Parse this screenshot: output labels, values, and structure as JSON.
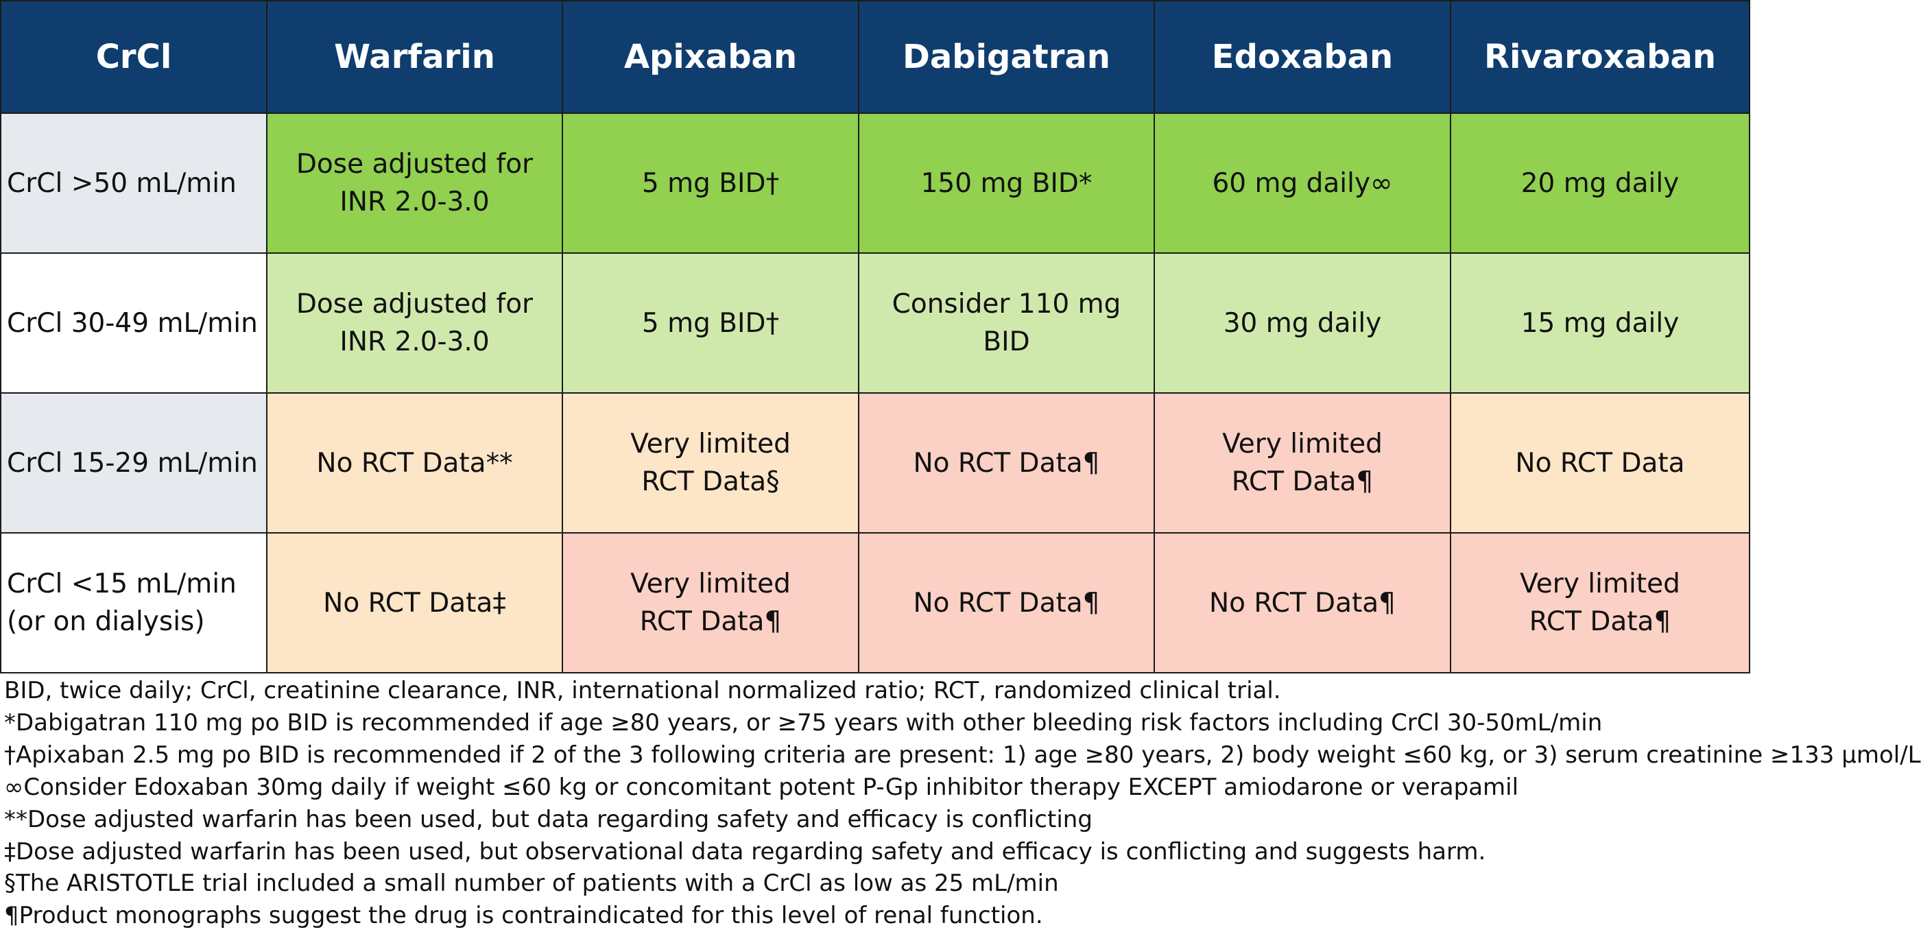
{
  "table": {
    "headers": [
      "CrCl",
      "Warfarin",
      "Apixaban",
      "Dabigatran",
      "Edoxaban",
      "Rivaroxaban"
    ],
    "rows": [
      {
        "crcl": "CrCl >50 mL/min",
        "cells": [
          "Dose adjusted for\nINR 2.0-3.0",
          "5 mg BID†",
          "150 mg BID*",
          "60 mg daily∞",
          "20 mg daily"
        ]
      },
      {
        "crcl": "CrCl 30-49 mL/min",
        "cells": [
          "Dose adjusted for\nINR 2.0-3.0",
          "5 mg BID†",
          "Consider 110 mg BID",
          "30 mg daily",
          "15 mg daily"
        ]
      },
      {
        "crcl": "CrCl 15-29 mL/min",
        "cells": [
          "No RCT Data**",
          "Very limited\nRCT Data§",
          "No RCT Data¶",
          "Very limited\nRCT Data¶",
          "No RCT Data"
        ]
      },
      {
        "crcl": "CrCl <15 mL/min\n(or on dialysis)",
        "cells": [
          "No RCT Data‡",
          "Very limited\nRCT Data¶",
          "No RCT Data¶",
          "No RCT Data¶",
          "Very limited\nRCT Data¶"
        ]
      }
    ]
  },
  "footnotes": [
    "BID, twice daily; CrCl, creatinine clearance, INR, international normalized ratio; RCT, randomized clinical trial.",
    "*Dabigatran 110 mg po BID is recommended if age ≥80 years, or ≥75 years with other bleeding risk factors including CrCl 30-50mL/min",
    "†Apixaban 2.5 mg po BID is recommended if 2 of the 3 following criteria are present: 1) age ≥80 years, 2) body weight ≤60 kg, or 3) serum creatinine ≥133 μmol/L",
    "∞Consider Edoxaban 30mg daily if weight ≤60 kg or concomitant potent P-Gp inhibitor therapy EXCEPT amiodarone or verapamil",
    "**Dose adjusted warfarin has been used, but data regarding safety and efficacy is conflicting",
    "‡Dose adjusted warfarin has been used, but observational data regarding safety and efficacy is conflicting and suggests harm.",
    "§The ARISTOTLE trial included a small number of patients with a CrCl as low as 25 mL/min",
    "¶Product monographs suggest the drug is contraindicated for this level of renal function."
  ],
  "colors": {
    "header_bg": "#0f3d6e",
    "header_text": "#ffffff",
    "crcl_gray": "#e6e9ee",
    "white": "#ffffff",
    "green": "#92d050",
    "light_green": "#cfe9ad",
    "peach": "#fde5c8",
    "pink": "#fbd0c5"
  }
}
